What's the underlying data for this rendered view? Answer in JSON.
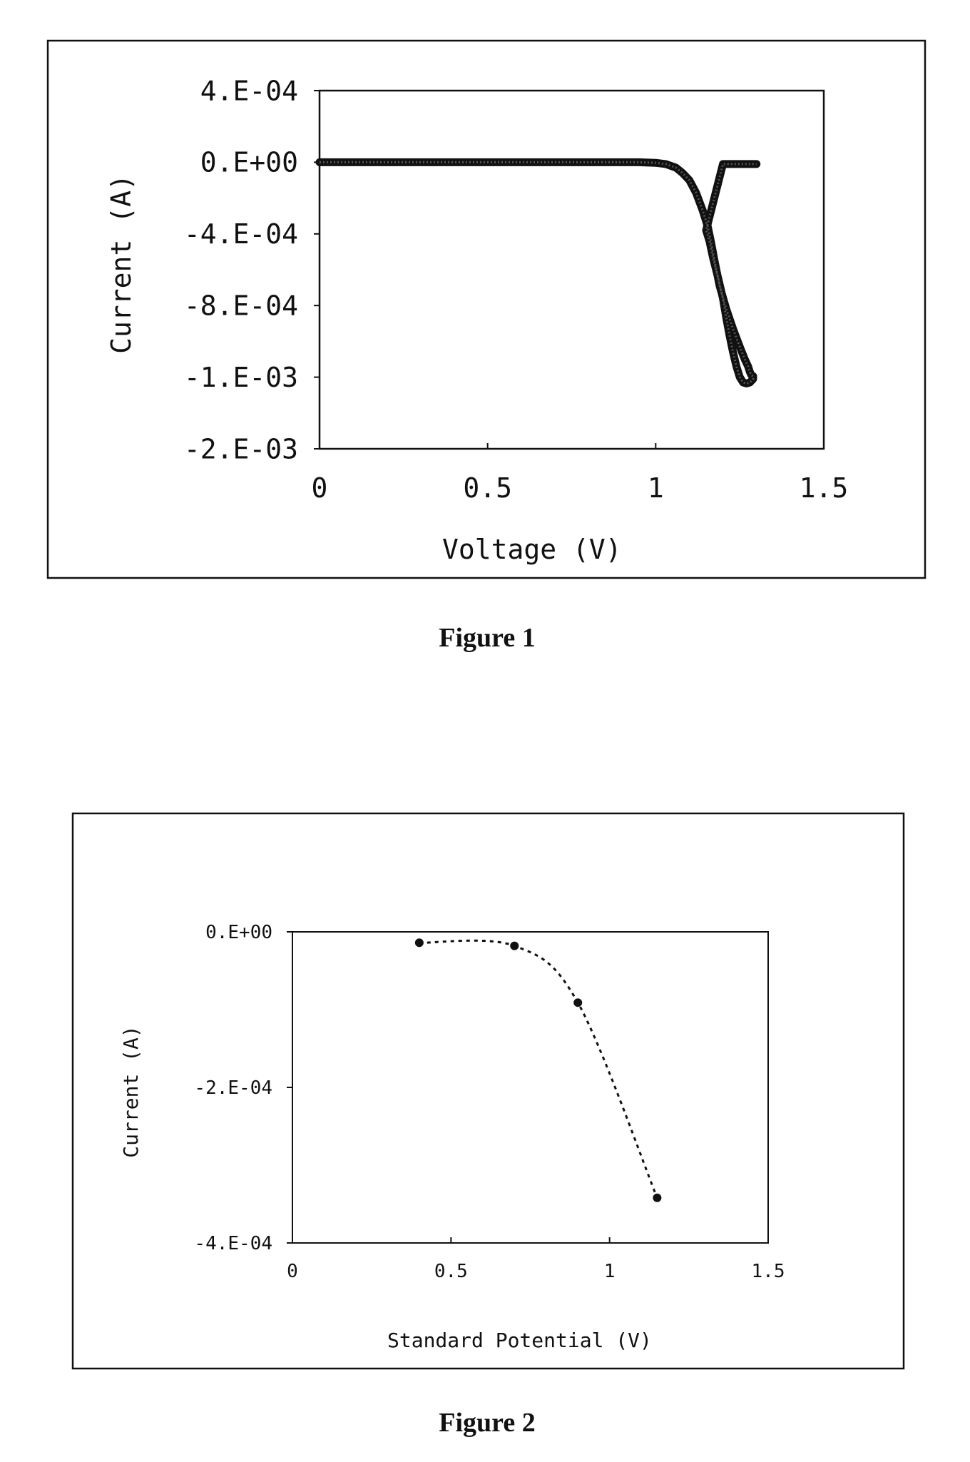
{
  "chart_data": [
    {
      "type": "line",
      "caption": "Figure 1",
      "xlabel": "Voltage (V)",
      "ylabel": "Current (A)",
      "xlim": [
        0,
        1.5
      ],
      "ylim": [
        -0.0016,
        0.0004
      ],
      "x_ticks": [
        {
          "value": 0,
          "label": "0"
        },
        {
          "value": 0.5,
          "label": "0.5"
        },
        {
          "value": 1,
          "label": "1"
        },
        {
          "value": 1.5,
          "label": "1.5"
        }
      ],
      "y_ticks": [
        {
          "value": 0.0004,
          "label": "4.E-04"
        },
        {
          "value": 0,
          "label": "0.E+00"
        },
        {
          "value": -0.0004,
          "label": "-4.E-04"
        },
        {
          "value": -0.0008,
          "label": "-8.E-04"
        },
        {
          "value": -0.0012,
          "label": "-1.E-03"
        },
        {
          "value": -0.0016,
          "label": "-2.E-03"
        }
      ],
      "grid": false,
      "series": [
        {
          "x": [
            0,
            0.2,
            0.4,
            0.6,
            0.8,
            0.95,
            1.0,
            1.03,
            1.06,
            1.08,
            1.1,
            1.12,
            1.14,
            1.155,
            1.165,
            1.175,
            1.19,
            1.21,
            1.23,
            1.25,
            1.265,
            1.275,
            1.28,
            1.285,
            1.29,
            1.29,
            1.28,
            1.27,
            1.26,
            1.25,
            1.24,
            1.23,
            1.22,
            1.21,
            1.2,
            1.185,
            1.17,
            1.16,
            1.15,
            1.2,
            1.3
          ],
          "y": [
            0,
            0,
            0,
            0,
            0,
            0,
            -3e-06,
            -1e-05,
            -3e-05,
            -6e-05,
            -0.0001,
            -0.00017,
            -0.00027,
            -0.00036,
            -0.00045,
            -0.00055,
            -0.00069,
            -0.00082,
            -0.00093,
            -0.00103,
            -0.0011,
            -0.00114,
            -0.00117,
            -0.00119,
            -0.001195,
            -0.00121,
            -0.00123,
            -0.001235,
            -0.00123,
            -0.0012,
            -0.00114,
            -0.00106,
            -0.00097,
            -0.00087,
            -0.00076,
            -0.00064,
            -0.00053,
            -0.00044,
            -0.00038,
            -1e-05,
            -1e-05
          ]
        }
      ]
    },
    {
      "type": "scatter",
      "caption": "Figure 2",
      "xlabel": "Standard Potential (V)",
      "ylabel": "Current (A)",
      "xlim": [
        0,
        1.5
      ],
      "ylim": [
        -0.0004,
        0
      ],
      "x_ticks": [
        {
          "value": 0,
          "label": "0"
        },
        {
          "value": 0.5,
          "label": "0.5"
        },
        {
          "value": 1,
          "label": "1"
        },
        {
          "value": 1.5,
          "label": "1.5"
        }
      ],
      "y_ticks": [
        {
          "value": 0,
          "label": "0.E+00"
        },
        {
          "value": -0.0002,
          "label": "-2.E-04"
        },
        {
          "value": -0.0004,
          "label": "-4.E-04"
        }
      ],
      "grid": false,
      "points": {
        "x": [
          0.4,
          0.7,
          0.9,
          1.15
        ],
        "y": [
          -1.4e-05,
          -1.8e-05,
          -9.1e-05,
          -0.000342
        ]
      }
    }
  ]
}
